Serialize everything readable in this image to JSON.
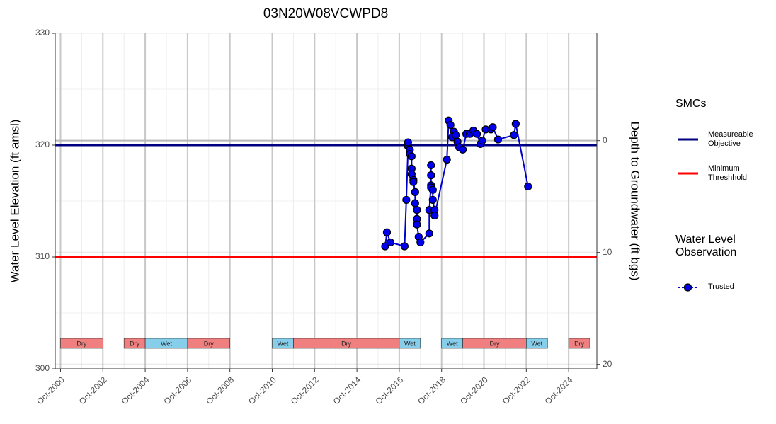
{
  "chart_data": {
    "type": "line",
    "title": "03N20W08VCWPD8",
    "y_label": "Water Level Elevation (ft amsl)",
    "y2_label": "Depth to Groundwater (ft bgs)",
    "x": [
      "2016-02",
      "2016-03",
      "2016-05",
      "2017-01",
      "2017-02",
      "2017-03",
      "2017-03",
      "2017-04",
      "2017-04",
      "2017-05",
      "2017-05",
      "2017-05",
      "2017-06",
      "2017-06",
      "2017-07",
      "2017-07",
      "2017-08",
      "2017-08",
      "2017-08",
      "2017-09",
      "2017-10",
      "2018-03",
      "2018-03",
      "2018-04",
      "2018-04",
      "2018-04",
      "2018-04",
      "2018-05",
      "2018-05",
      "2018-06",
      "2018-06",
      "2019-01",
      "2019-02",
      "2019-03",
      "2019-04",
      "2019-05",
      "2019-06",
      "2019-07",
      "2019-08",
      "2019-10",
      "2019-12",
      "2020-02",
      "2020-04",
      "2020-06",
      "2020-08",
      "2020-09",
      "2020-11",
      "2021-02",
      "2021-03",
      "2021-06",
      "2022-03",
      "2022-04",
      "2022-11"
    ],
    "series": [
      {
        "name": "Trusted",
        "color": "#0000cc",
        "fill": "#0000ee",
        "values": [
          310.95,
          312.2,
          311.3,
          310.95,
          315.1,
          319.9,
          320.25,
          319.6,
          319.2,
          319.0,
          317.9,
          317.4,
          316.9,
          316.7,
          315.8,
          314.8,
          314.2,
          313.4,
          312.9,
          311.8,
          311.3,
          312.1,
          314.2,
          316.4,
          318.2,
          317.3,
          316.2,
          316.0,
          315.1,
          314.2,
          313.7,
          318.7,
          322.2,
          321.8,
          320.7,
          321.2,
          320.9,
          320.3,
          319.8,
          319.6,
          321.0,
          321.0,
          321.3,
          321.0,
          320.1,
          320.4,
          321.4,
          321.4,
          321.6,
          320.5,
          320.9,
          321.9,
          316.3
        ]
      }
    ],
    "reference_lines": [
      {
        "name": "Measureable Objective",
        "value": 320,
        "color": "#000080"
      },
      {
        "name": "Minimum Threshhold",
        "value": 310,
        "color": "#ff0000"
      }
    ],
    "periods": [
      {
        "label": "Dry",
        "start": "2000-10",
        "end": "2002-10",
        "color": "#f08080"
      },
      {
        "label": "Dry",
        "start": "2003-10",
        "end": "2004-10",
        "color": "#f08080"
      },
      {
        "label": "Wet",
        "start": "2004-10",
        "end": "2006-10",
        "color": "#87ceeb"
      },
      {
        "label": "Dry",
        "start": "2006-10",
        "end": "2008-10",
        "color": "#f08080"
      },
      {
        "label": "Wet",
        "start": "2010-10",
        "end": "2011-10",
        "color": "#87ceeb"
      },
      {
        "label": "Dry",
        "start": "2011-10",
        "end": "2016-10",
        "color": "#f08080"
      },
      {
        "label": "Wet",
        "start": "2016-10",
        "end": "2017-10",
        "color": "#87ceeb"
      },
      {
        "label": "Wet",
        "start": "2018-10",
        "end": "2019-10",
        "color": "#87ceeb"
      },
      {
        "label": "Dry",
        "start": "2019-10",
        "end": "2022-10",
        "color": "#f08080"
      },
      {
        "label": "Wet",
        "start": "2022-10",
        "end": "2023-10",
        "color": "#87ceeb"
      },
      {
        "label": "Dry",
        "start": "2024-10",
        "end": "2025-10",
        "color": "#f08080"
      }
    ],
    "legend": {
      "smc_title": "SMCs",
      "observation_title": "Water Level Observation"
    },
    "xlim": [
      "2000-07",
      "2026-02"
    ],
    "xticks": [
      {
        "value": "2000-10",
        "label": "Oct-2000"
      },
      {
        "value": "2002-10",
        "label": "Oct-2002"
      },
      {
        "value": "2004-10",
        "label": "Oct-2004"
      },
      {
        "value": "2006-10",
        "label": "Oct-2006"
      },
      {
        "value": "2008-10",
        "label": "Oct-2008"
      },
      {
        "value": "2010-10",
        "label": "Oct-2010"
      },
      {
        "value": "2012-10",
        "label": "Oct-2012"
      },
      {
        "value": "2014-10",
        "label": "Oct-2014"
      },
      {
        "value": "2016-10",
        "label": "Oct-2016"
      },
      {
        "value": "2018-10",
        "label": "Oct-2018"
      },
      {
        "value": "2020-10",
        "label": "Oct-2020"
      },
      {
        "value": "2022-10",
        "label": "Oct-2022"
      },
      {
        "value": "2024-10",
        "label": "Oct-2024"
      }
    ],
    "ylim": [
      300,
      330
    ],
    "yticks": [
      300,
      310,
      320,
      330
    ],
    "y2lim": [
      20.4,
      -9.6
    ],
    "y2ticks": [
      0,
      10,
      20
    ],
    "grid": true
  }
}
